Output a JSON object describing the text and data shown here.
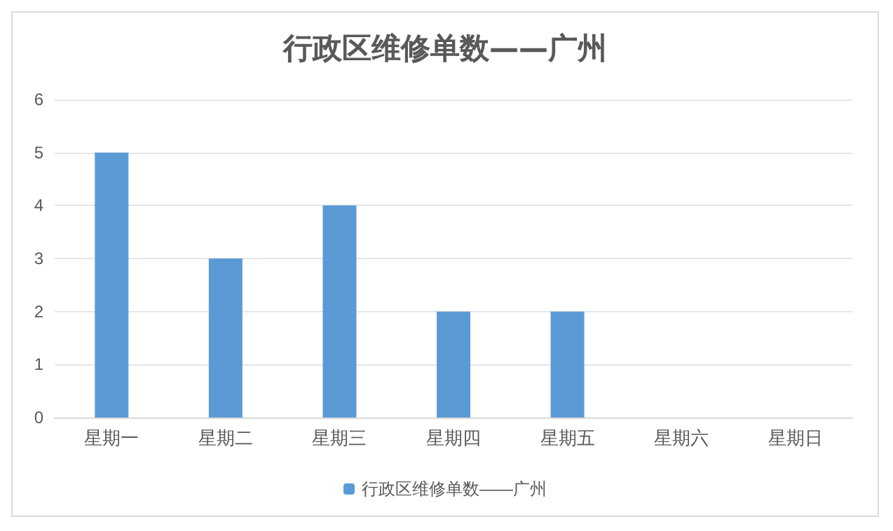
{
  "chart_data": {
    "type": "bar",
    "title": "行政区维修单数——广州",
    "categories": [
      "星期一",
      "星期二",
      "星期三",
      "星期四",
      "星期五",
      "星期六",
      "星期日"
    ],
    "series": [
      {
        "name": "行政区维修单数——广州",
        "color": "#5b9bd5",
        "values": [
          5,
          3,
          4,
          2,
          2,
          0,
          0
        ]
      }
    ],
    "ylim": [
      0,
      6
    ],
    "yticks": [
      0,
      1,
      2,
      3,
      4,
      5,
      6
    ],
    "grid": "y",
    "legend": "bottom"
  }
}
